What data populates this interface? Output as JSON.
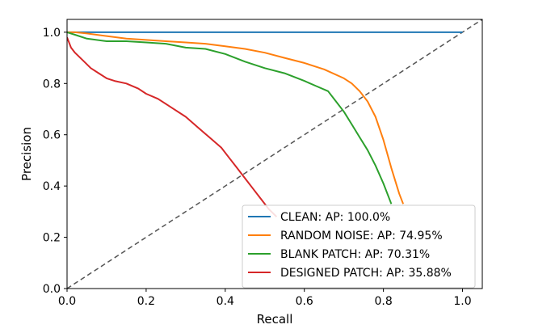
{
  "chart_data": {
    "type": "line",
    "title": "",
    "xlabel": "Recall",
    "ylabel": "Precision",
    "xlim": [
      0.0,
      1.05
    ],
    "ylim": [
      0.0,
      1.05
    ],
    "xticks": [
      "0.0",
      "0.2",
      "0.4",
      "0.6",
      "0.8",
      "1.0"
    ],
    "yticks": [
      "0.0",
      "0.2",
      "0.4",
      "0.6",
      "0.8",
      "1.0"
    ],
    "grid": false,
    "legend_position": "lower-right",
    "reference_line": {
      "style": "dashed",
      "color": "#555555",
      "from": [
        0,
        0
      ],
      "to": [
        1.05,
        1.05
      ]
    },
    "series": [
      {
        "name": "CLEAN: AP: 100.0%",
        "color": "#1f77b4",
        "x": [
          0.0,
          0.1,
          0.2,
          0.3,
          0.4,
          0.5,
          0.6,
          0.7,
          0.8,
          0.9,
          1.0
        ],
        "y": [
          1.0,
          1.0,
          1.0,
          1.0,
          1.0,
          1.0,
          1.0,
          1.0,
          1.0,
          1.0,
          1.0
        ]
      },
      {
        "name": "RANDOM NOISE: AP: 74.95%",
        "color": "#ff7f0e",
        "x": [
          0.0,
          0.02,
          0.05,
          0.1,
          0.15,
          0.2,
          0.25,
          0.3,
          0.35,
          0.4,
          0.45,
          0.5,
          0.55,
          0.6,
          0.65,
          0.7,
          0.72,
          0.74,
          0.76,
          0.78,
          0.8,
          0.82,
          0.84,
          0.85
        ],
        "y": [
          1.0,
          1.0,
          0.995,
          0.985,
          0.975,
          0.97,
          0.965,
          0.96,
          0.955,
          0.945,
          0.935,
          0.92,
          0.9,
          0.88,
          0.855,
          0.82,
          0.8,
          0.77,
          0.73,
          0.67,
          0.58,
          0.47,
          0.37,
          0.33
        ]
      },
      {
        "name": "BLANK PATCH: AP: 70.31%",
        "color": "#2ca02c",
        "x": [
          0.0,
          0.02,
          0.05,
          0.1,
          0.15,
          0.2,
          0.25,
          0.3,
          0.35,
          0.4,
          0.45,
          0.5,
          0.55,
          0.6,
          0.63,
          0.66,
          0.68,
          0.7,
          0.72,
          0.74,
          0.76,
          0.78,
          0.8,
          0.82
        ],
        "y": [
          1.0,
          0.99,
          0.975,
          0.965,
          0.965,
          0.96,
          0.955,
          0.94,
          0.935,
          0.915,
          0.885,
          0.86,
          0.84,
          0.81,
          0.79,
          0.77,
          0.73,
          0.69,
          0.64,
          0.59,
          0.54,
          0.48,
          0.41,
          0.33
        ]
      },
      {
        "name": "DESIGNED PATCH: AP: 35.88%",
        "color": "#d62728",
        "x": [
          0.0,
          0.01,
          0.02,
          0.04,
          0.06,
          0.08,
          0.1,
          0.12,
          0.15,
          0.18,
          0.2,
          0.23,
          0.26,
          0.3,
          0.33,
          0.36,
          0.39,
          0.41,
          0.43,
          0.45,
          0.47,
          0.49,
          0.51,
          0.53
        ],
        "y": [
          0.98,
          0.94,
          0.92,
          0.89,
          0.86,
          0.84,
          0.82,
          0.81,
          0.8,
          0.78,
          0.76,
          0.74,
          0.71,
          0.67,
          0.63,
          0.59,
          0.55,
          0.51,
          0.47,
          0.43,
          0.39,
          0.35,
          0.31,
          0.28
        ]
      }
    ]
  }
}
